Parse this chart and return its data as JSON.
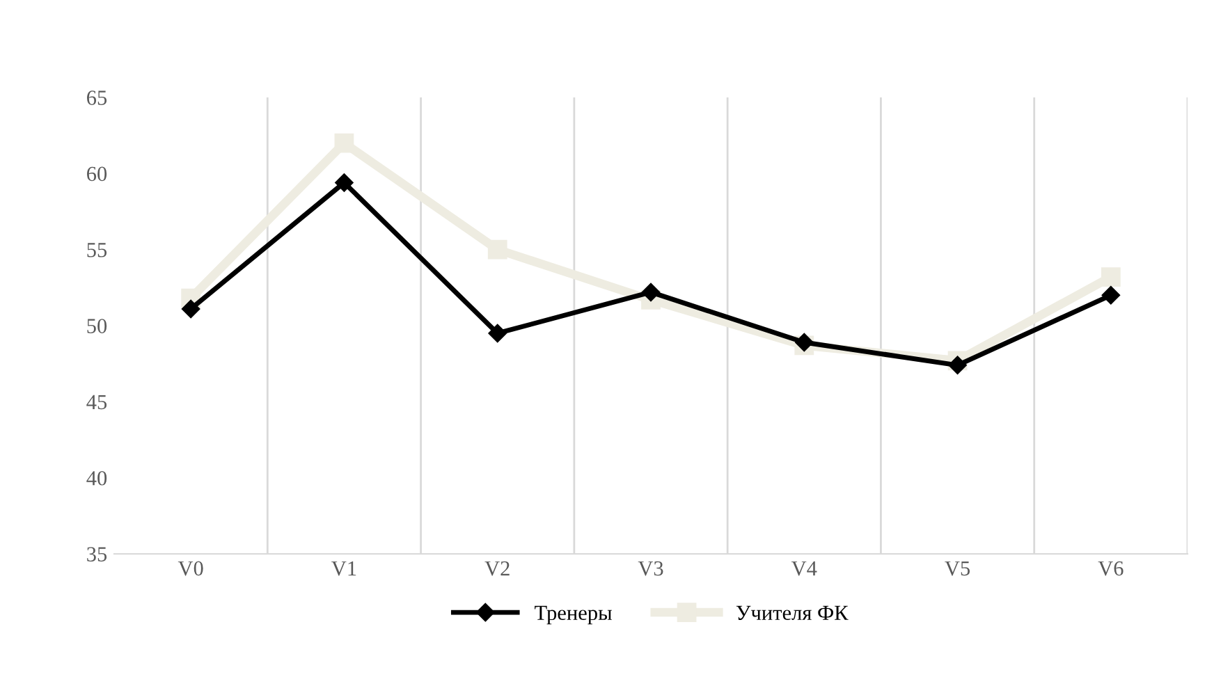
{
  "chart_data": {
    "type": "line",
    "categories": [
      "V0",
      "V1",
      "V2",
      "V3",
      "V4",
      "V5",
      "V6"
    ],
    "series": [
      {
        "name": "Тренеры",
        "color": "#000000",
        "marker": "diamond",
        "values": [
          51.1,
          59.4,
          49.5,
          52.2,
          48.9,
          47.4,
          52.0
        ]
      },
      {
        "name": "Учителя ФК",
        "color": "#eeece1",
        "marker": "square",
        "values": [
          51.8,
          62.0,
          55.0,
          51.7,
          48.7,
          47.7,
          53.2
        ]
      }
    ],
    "ylim": [
      35,
      65
    ],
    "yticks": [
      35,
      40,
      45,
      50,
      55,
      60,
      65
    ],
    "grid": "x",
    "legend": "bottom",
    "line_style": "solid"
  }
}
